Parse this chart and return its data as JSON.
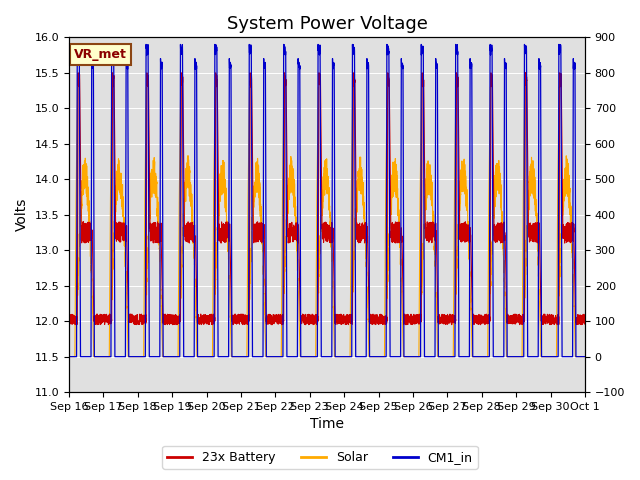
{
  "title": "System Power Voltage",
  "xlabel": "Time",
  "ylabel": "Volts",
  "ylim_left": [
    11.0,
    16.0
  ],
  "ylim_right": [
    -100,
    900
  ],
  "yticks_left": [
    11.0,
    11.5,
    12.0,
    12.5,
    13.0,
    13.5,
    14.0,
    14.5,
    15.0,
    15.5,
    16.0
  ],
  "yticks_right": [
    -100,
    0,
    100,
    200,
    300,
    400,
    500,
    600,
    700,
    800,
    900
  ],
  "xtick_labels": [
    "Sep 16",
    "Sep 17",
    "Sep 18",
    "Sep 19",
    "Sep 20",
    "Sep 21",
    "Sep 22",
    "Sep 23",
    "Sep 24",
    "Sep 25",
    "Sep 26",
    "Sep 27",
    "Sep 28",
    "Sep 29",
    "Sep 30",
    "Oct 1"
  ],
  "n_days": 15,
  "color_battery": "#cc0000",
  "color_solar": "#ffaa00",
  "color_cm1": "#0000cc",
  "bg_color": "#e0e0e0",
  "legend_labels": [
    "23x Battery",
    "Solar",
    "CM1_in"
  ],
  "vr_label": "VR_met",
  "title_fontsize": 13,
  "label_fontsize": 10,
  "tick_fontsize": 8
}
